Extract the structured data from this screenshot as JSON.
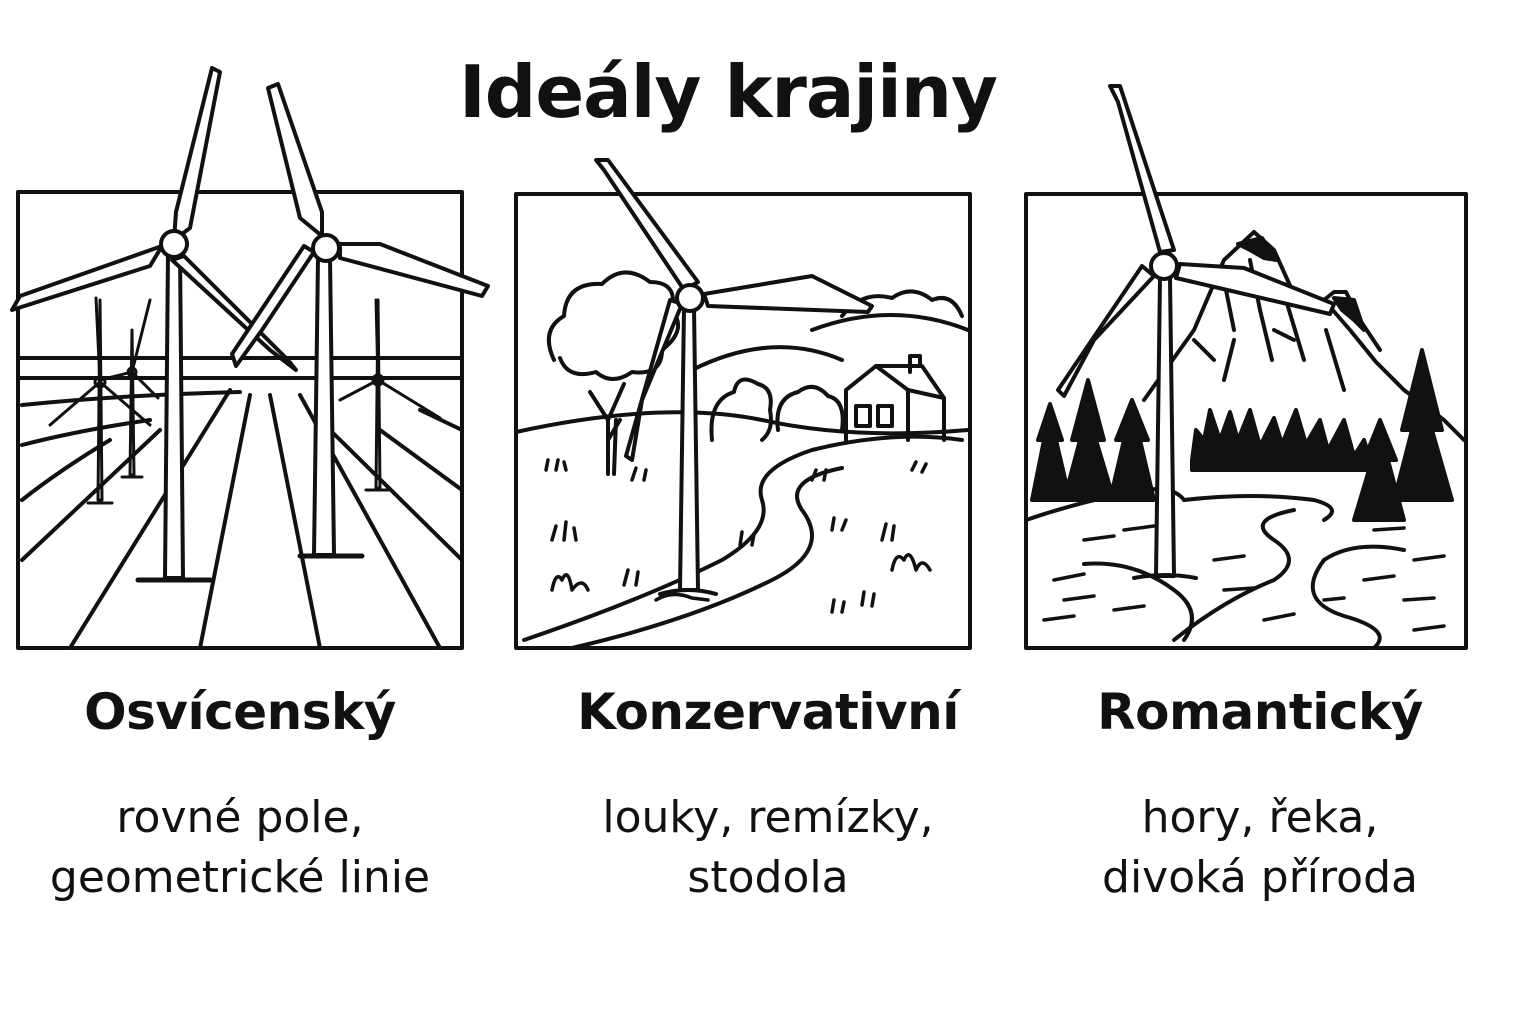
{
  "title": "Ideály krajiny",
  "panels": [
    {
      "heading": "Osvícenský",
      "description": [
        "rovné pole,",
        "geometrické linie"
      ],
      "scene": "wind-farm-geometric-fields-icon"
    },
    {
      "heading": "Konzervativní",
      "description": [
        "louky, remízky,",
        "stodola"
      ],
      "scene": "wind-turbine-meadow-barn-icon"
    },
    {
      "heading": "Romantický",
      "description": [
        "hory, řeka,",
        "divoká příroda"
      ],
      "scene": "wind-turbine-mountains-river-icon"
    }
  ],
  "colors": {
    "ink": "#111111",
    "background": "#ffffff"
  }
}
